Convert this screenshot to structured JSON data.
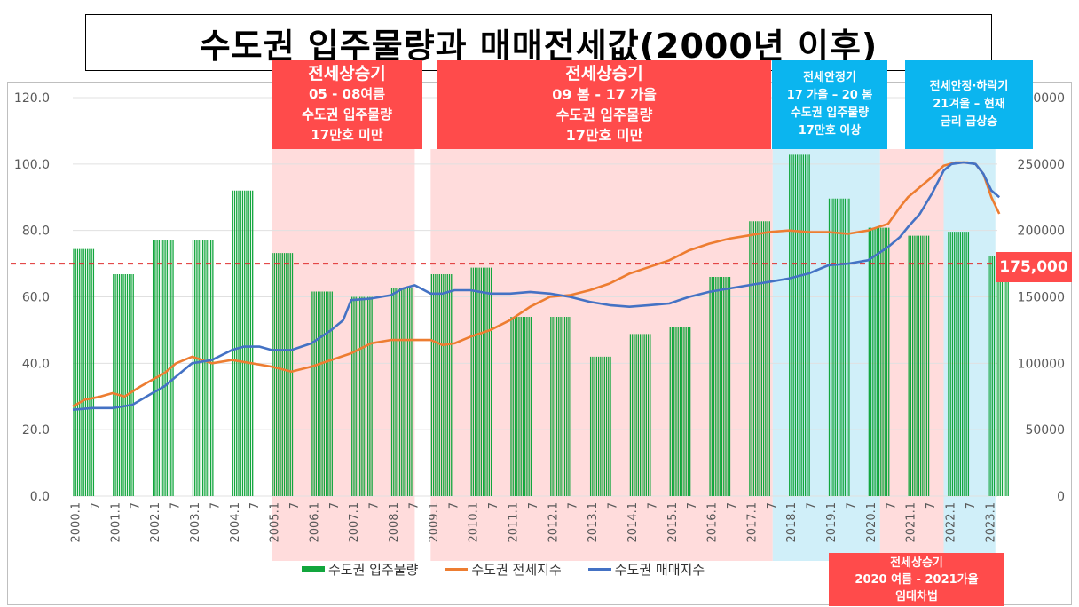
{
  "title": "수도권 입주물량과 매매전세값(2000년 이후)",
  "colors": {
    "supply": "#12a63d",
    "jeonse": "#ed7d31",
    "sale": "#4472c4",
    "red_box": "#ff4b4b",
    "blue_box": "#0bb5ef",
    "red_band": "#ffd6d6",
    "blue_band": "#c8ecf8",
    "ref_line": "#e03030"
  },
  "phases": [
    {
      "id": "p1",
      "color": "red",
      "lines": [
        "전세상승기",
        "05 - 08여름",
        "수도권 입주물량",
        "17만호 미만"
      ]
    },
    {
      "id": "p2",
      "color": "red",
      "lines": [
        "전세상승기",
        "09 봄 - 17 가을",
        "수도권 입주물량",
        "17만호 미만"
      ]
    },
    {
      "id": "p3",
      "color": "blue",
      "lines": [
        "전세안정기",
        "17 가을 – 20 봄",
        "수도권 입주물량",
        "17만호 이상"
      ]
    },
    {
      "id": "p4",
      "color": "blue",
      "lines": [
        "전세안정·하락기",
        "21겨울 – 현재",
        "금리 급상승"
      ]
    },
    {
      "id": "p5",
      "color": "red",
      "lines": [
        "전세상승기",
        "2020 여름 - 2021가을",
        "임대차법"
      ]
    }
  ],
  "reference_label": "175,000",
  "legend": [
    "수도권 입주물량",
    "수도권 전세지수",
    "수도권 매매지수"
  ],
  "chart_data": {
    "type": "bar+line",
    "title": "수도권 입주물량과 매매전세값(2000년 이후)",
    "x_tick_labels": [
      "2000.1",
      "7",
      "2001.1",
      "7",
      "2002.1",
      "7",
      "2003.1",
      "7",
      "2004.1",
      "7",
      "2005.1",
      "7",
      "2006.1",
      "7",
      "2007.1",
      "7",
      "2008.1",
      "7",
      "2009.1",
      "7",
      "2010.1",
      "7",
      "2011.1",
      "7",
      "2012.1",
      "7",
      "2013.1",
      "7",
      "2014.1",
      "7",
      "2015.1",
      "7",
      "2016.1",
      "7",
      "2017.1",
      "7",
      "2018.1",
      "7",
      "2019.1",
      "7",
      "2020.1",
      "7",
      "2021.1",
      "7",
      "2022.1",
      "7",
      "2023.1"
    ],
    "y_left": {
      "range": [
        0,
        120
      ],
      "ticks": [
        "0.0",
        "20.0",
        "40.0",
        "60.0",
        "80.0",
        "100.0",
        "120.0"
      ]
    },
    "y_right": {
      "range": [
        0,
        300000
      ],
      "ticks": [
        "0",
        "50000",
        "100000",
        "150000",
        "200000",
        "250000",
        "300000"
      ]
    },
    "reference_line": 175000,
    "supply_bars": {
      "name": "수도권 입주물량",
      "axis": "right",
      "years": [
        2000,
        2001,
        2002,
        2003,
        2004,
        2005,
        2006,
        2007,
        2008,
        2009,
        2010,
        2011,
        2012,
        2013,
        2014,
        2015,
        2016,
        2017,
        2018,
        2019,
        2020,
        2021,
        2022,
        2023
      ],
      "values": [
        186000,
        167000,
        193000,
        193000,
        230000,
        183000,
        154000,
        150000,
        157000,
        167000,
        172000,
        135000,
        135000,
        105000,
        122000,
        127000,
        165000,
        207000,
        257000,
        224000,
        202000,
        196000,
        199000,
        181000
      ]
    },
    "series": [
      {
        "name": "수도권 전세지수",
        "axis": "left",
        "points": [
          [
            2000.0,
            27
          ],
          [
            2000.3,
            29
          ],
          [
            2000.7,
            30
          ],
          [
            2001.0,
            31
          ],
          [
            2001.3,
            30
          ],
          [
            2001.7,
            33
          ],
          [
            2002.0,
            35
          ],
          [
            2002.3,
            37
          ],
          [
            2002.6,
            40
          ],
          [
            2003.0,
            42
          ],
          [
            2003.5,
            40
          ],
          [
            2004.0,
            41
          ],
          [
            2004.5,
            40
          ],
          [
            2005.0,
            39
          ],
          [
            2005.5,
            37.5
          ],
          [
            2006.0,
            39
          ],
          [
            2006.5,
            41
          ],
          [
            2007.0,
            43
          ],
          [
            2007.5,
            46
          ],
          [
            2008.0,
            47
          ],
          [
            2008.5,
            47
          ],
          [
            2009.0,
            47
          ],
          [
            2009.3,
            45.5
          ],
          [
            2009.6,
            46
          ],
          [
            2010.0,
            48
          ],
          [
            2010.5,
            50
          ],
          [
            2011.0,
            53
          ],
          [
            2011.5,
            57
          ],
          [
            2012.0,
            60
          ],
          [
            2012.5,
            60.5
          ],
          [
            2013.0,
            62
          ],
          [
            2013.5,
            64
          ],
          [
            2014.0,
            67
          ],
          [
            2014.5,
            69
          ],
          [
            2015.0,
            71
          ],
          [
            2015.5,
            74
          ],
          [
            2016.0,
            76
          ],
          [
            2016.5,
            77.5
          ],
          [
            2017.0,
            78.5
          ],
          [
            2017.5,
            79.5
          ],
          [
            2018.0,
            80
          ],
          [
            2018.5,
            79.5
          ],
          [
            2019.0,
            79.5
          ],
          [
            2019.5,
            79
          ],
          [
            2020.0,
            80
          ],
          [
            2020.5,
            82
          ],
          [
            2020.8,
            87
          ],
          [
            2021.0,
            90
          ],
          [
            2021.3,
            93
          ],
          [
            2021.6,
            96
          ],
          [
            2021.9,
            99.5
          ],
          [
            2022.2,
            100.5
          ],
          [
            2022.5,
            100.5
          ],
          [
            2022.7,
            100
          ],
          [
            2022.9,
            97
          ],
          [
            2023.1,
            90
          ],
          [
            2023.3,
            85
          ]
        ]
      },
      {
        "name": "수도권 매매지수",
        "axis": "left",
        "points": [
          [
            2000.0,
            26
          ],
          [
            2000.5,
            26.5
          ],
          [
            2001.0,
            26.5
          ],
          [
            2001.5,
            27.5
          ],
          [
            2002.0,
            31
          ],
          [
            2002.3,
            33
          ],
          [
            2002.6,
            36
          ],
          [
            2003.0,
            40
          ],
          [
            2003.5,
            41
          ],
          [
            2004.0,
            44
          ],
          [
            2004.3,
            45
          ],
          [
            2004.7,
            45
          ],
          [
            2005.0,
            44
          ],
          [
            2005.5,
            44
          ],
          [
            2006.0,
            46
          ],
          [
            2006.5,
            50
          ],
          [
            2006.8,
            53
          ],
          [
            2007.0,
            59
          ],
          [
            2007.5,
            59.5
          ],
          [
            2008.0,
            60.5
          ],
          [
            2008.3,
            62.5
          ],
          [
            2008.6,
            63.5
          ],
          [
            2009.0,
            61
          ],
          [
            2009.3,
            61
          ],
          [
            2009.6,
            62
          ],
          [
            2010.0,
            62
          ],
          [
            2010.5,
            61
          ],
          [
            2011.0,
            61
          ],
          [
            2011.5,
            61.5
          ],
          [
            2012.0,
            61
          ],
          [
            2012.5,
            60
          ],
          [
            2013.0,
            58.5
          ],
          [
            2013.5,
            57.5
          ],
          [
            2014.0,
            57
          ],
          [
            2014.5,
            57.5
          ],
          [
            2015.0,
            58
          ],
          [
            2015.5,
            60
          ],
          [
            2016.0,
            61.5
          ],
          [
            2016.5,
            62.5
          ],
          [
            2017.0,
            63.5
          ],
          [
            2017.5,
            64.5
          ],
          [
            2018.0,
            65.5
          ],
          [
            2018.5,
            67
          ],
          [
            2019.0,
            69.5
          ],
          [
            2019.5,
            70
          ],
          [
            2020.0,
            71
          ],
          [
            2020.5,
            75
          ],
          [
            2020.8,
            78
          ],
          [
            2021.0,
            81
          ],
          [
            2021.3,
            85
          ],
          [
            2021.6,
            91
          ],
          [
            2021.9,
            98
          ],
          [
            2022.1,
            100
          ],
          [
            2022.4,
            100.5
          ],
          [
            2022.7,
            100
          ],
          [
            2022.9,
            97
          ],
          [
            2023.1,
            92
          ],
          [
            2023.3,
            90
          ]
        ]
      }
    ],
    "shaded_periods": [
      {
        "from": 2005.0,
        "to": 2008.6,
        "color": "red"
      },
      {
        "from": 2009.0,
        "to": 2017.6,
        "color": "red"
      },
      {
        "from": 2017.6,
        "to": 2020.3,
        "color": "blue"
      },
      {
        "from": 2020.3,
        "to": 2021.9,
        "color": "red"
      },
      {
        "from": 2021.9,
        "to": 2023.2,
        "color": "blue"
      }
    ],
    "legend_position": "bottom"
  }
}
